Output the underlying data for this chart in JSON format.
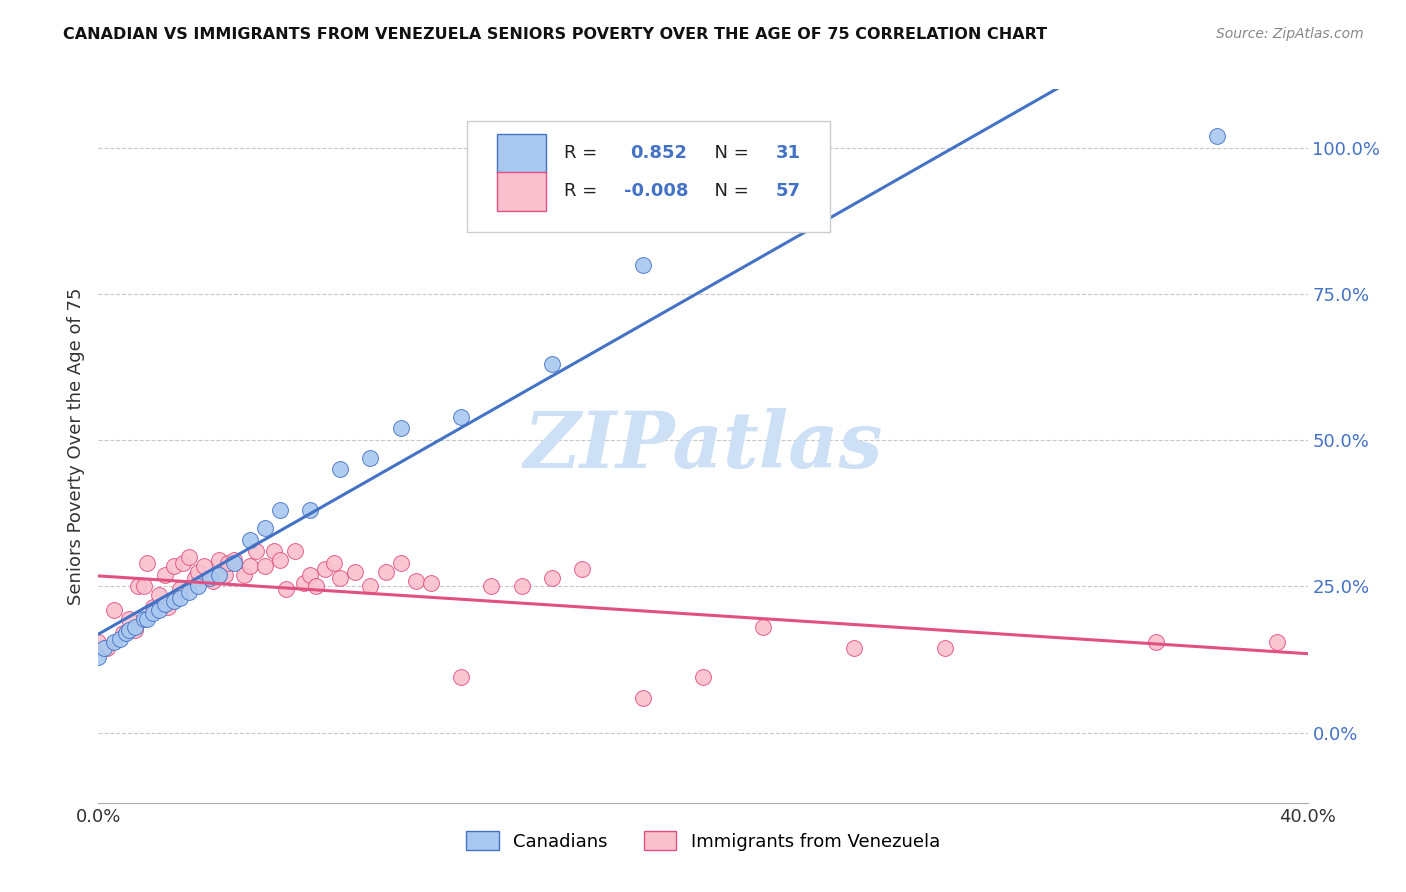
{
  "title": "CANADIAN VS IMMIGRANTS FROM VENEZUELA SENIORS POVERTY OVER THE AGE OF 75 CORRELATION CHART",
  "source": "Source: ZipAtlas.com",
  "ylabel": "Seniors Poverty Over the Age of 75",
  "xlim": [
    0.0,
    0.4
  ],
  "ylim": [
    -0.12,
    1.1
  ],
  "yticks_right": [
    0.0,
    0.25,
    0.5,
    0.75,
    1.0
  ],
  "ytick_right_labels": [
    "0.0%",
    "25.0%",
    "50.0%",
    "75.0%",
    "100.0%"
  ],
  "R_canadian": 0.852,
  "N_canadian": 31,
  "R_venezuela": -0.008,
  "N_venezuela": 57,
  "canadian_fill_color": "#a8c8f0",
  "venezuela_fill_color": "#f9c0ce",
  "canadian_line_color": "#4472c4",
  "venezuela_line_color": "#e05080",
  "grid_color": "#c8c8c8",
  "watermark_color": "#cde0f5",
  "ca_x": [
    0.0,
    0.002,
    0.005,
    0.007,
    0.009,
    0.01,
    0.012,
    0.015,
    0.016,
    0.018,
    0.02,
    0.022,
    0.025,
    0.027,
    0.03,
    0.033,
    0.037,
    0.04,
    0.045,
    0.05,
    0.055,
    0.06,
    0.07,
    0.08,
    0.09,
    0.1,
    0.12,
    0.15,
    0.18,
    0.2,
    0.37
  ],
  "ca_y": [
    0.13,
    0.145,
    0.155,
    0.16,
    0.17,
    0.175,
    0.18,
    0.195,
    0.195,
    0.205,
    0.21,
    0.22,
    0.225,
    0.23,
    0.24,
    0.25,
    0.265,
    0.27,
    0.29,
    0.33,
    0.35,
    0.38,
    0.38,
    0.45,
    0.47,
    0.52,
    0.54,
    0.63,
    0.8,
    1.02,
    1.02
  ],
  "ven_x": [
    0.0,
    0.003,
    0.005,
    0.008,
    0.01,
    0.012,
    0.013,
    0.015,
    0.016,
    0.018,
    0.02,
    0.022,
    0.023,
    0.025,
    0.027,
    0.028,
    0.03,
    0.032,
    0.033,
    0.035,
    0.038,
    0.04,
    0.042,
    0.043,
    0.045,
    0.048,
    0.05,
    0.052,
    0.055,
    0.058,
    0.06,
    0.062,
    0.065,
    0.068,
    0.07,
    0.072,
    0.075,
    0.078,
    0.08,
    0.085,
    0.09,
    0.095,
    0.1,
    0.105,
    0.11,
    0.12,
    0.13,
    0.14,
    0.15,
    0.16,
    0.18,
    0.2,
    0.22,
    0.25,
    0.28,
    0.35,
    0.39
  ],
  "ven_y": [
    0.155,
    0.145,
    0.21,
    0.17,
    0.195,
    0.175,
    0.25,
    0.25,
    0.29,
    0.215,
    0.235,
    0.27,
    0.215,
    0.285,
    0.245,
    0.29,
    0.3,
    0.265,
    0.275,
    0.285,
    0.26,
    0.295,
    0.27,
    0.29,
    0.295,
    0.27,
    0.285,
    0.31,
    0.285,
    0.31,
    0.295,
    0.245,
    0.31,
    0.255,
    0.27,
    0.25,
    0.28,
    0.29,
    0.265,
    0.275,
    0.25,
    0.275,
    0.29,
    0.26,
    0.255,
    0.095,
    0.25,
    0.25,
    0.265,
    0.28,
    0.06,
    0.095,
    0.18,
    0.145,
    0.145,
    0.155,
    0.155
  ]
}
